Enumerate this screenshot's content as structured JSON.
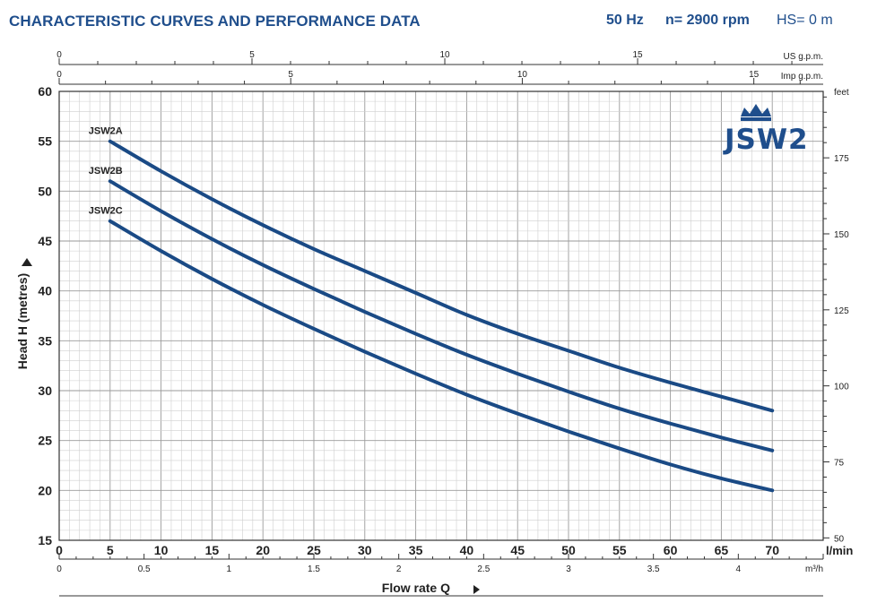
{
  "header": {
    "title": "CHARACTERISTIC CURVES AND PERFORMANCE DATA",
    "frequency": "50 Hz",
    "speed": "n= 2900 rpm",
    "suction": "HS= 0 m"
  },
  "logo": {
    "text": "JSW2",
    "icon": "crown-icon",
    "color": "#1f4e8c"
  },
  "chart_data": {
    "type": "line",
    "xlabel": "Flow rate Q",
    "ylabel": "Head H (metres)",
    "x_unit": "l/min",
    "xlim": [
      0,
      75
    ],
    "ylim": [
      15,
      60
    ],
    "x_ticks": [
      0,
      5,
      10,
      15,
      20,
      25,
      30,
      35,
      40,
      45,
      50,
      55,
      60,
      65,
      70
    ],
    "y_ticks": [
      15,
      20,
      25,
      30,
      35,
      40,
      45,
      50,
      55,
      60
    ],
    "grid": true,
    "line_color": "#1a4a85",
    "series": [
      {
        "name": "JSW2A",
        "x": [
          5,
          10,
          15,
          20,
          25,
          30,
          35,
          40,
          45,
          50,
          55,
          60,
          65,
          70
        ],
        "y": [
          55,
          52,
          49.2,
          46.6,
          44.2,
          42,
          39.8,
          37.6,
          35.7,
          34,
          32.3,
          30.8,
          29.4,
          28
        ]
      },
      {
        "name": "JSW2B",
        "x": [
          5,
          10,
          15,
          20,
          25,
          30,
          35,
          40,
          45,
          50,
          55,
          60,
          65,
          70
        ],
        "y": [
          51,
          48,
          45.2,
          42.6,
          40.2,
          37.9,
          35.7,
          33.6,
          31.7,
          29.9,
          28.2,
          26.7,
          25.3,
          24
        ]
      },
      {
        "name": "JSW2C",
        "x": [
          5,
          10,
          15,
          20,
          25,
          30,
          35,
          40,
          45,
          50,
          55,
          60,
          65,
          70
        ],
        "y": [
          47,
          44,
          41.2,
          38.6,
          36.2,
          33.9,
          31.7,
          29.6,
          27.7,
          25.9,
          24.2,
          22.6,
          21.2,
          20
        ]
      }
    ],
    "secondary_axes": {
      "us_gpm": {
        "label": "US g.p.m.",
        "major": [
          0,
          5,
          10,
          15
        ],
        "minor_step": 1
      },
      "imp_gpm": {
        "label": "Imp g.p.m.",
        "major": [
          0,
          5,
          10,
          15
        ],
        "minor_step": 1
      },
      "m3h": {
        "label": "m³/h",
        "major": [
          0,
          0.5,
          1,
          1.5,
          2,
          2.5,
          3,
          3.5,
          4
        ],
        "minor_step": 0.1
      },
      "feet": {
        "label": "feet",
        "major": [
          50,
          75,
          100,
          125,
          150,
          175
        ],
        "minor_step": 5
      }
    }
  }
}
